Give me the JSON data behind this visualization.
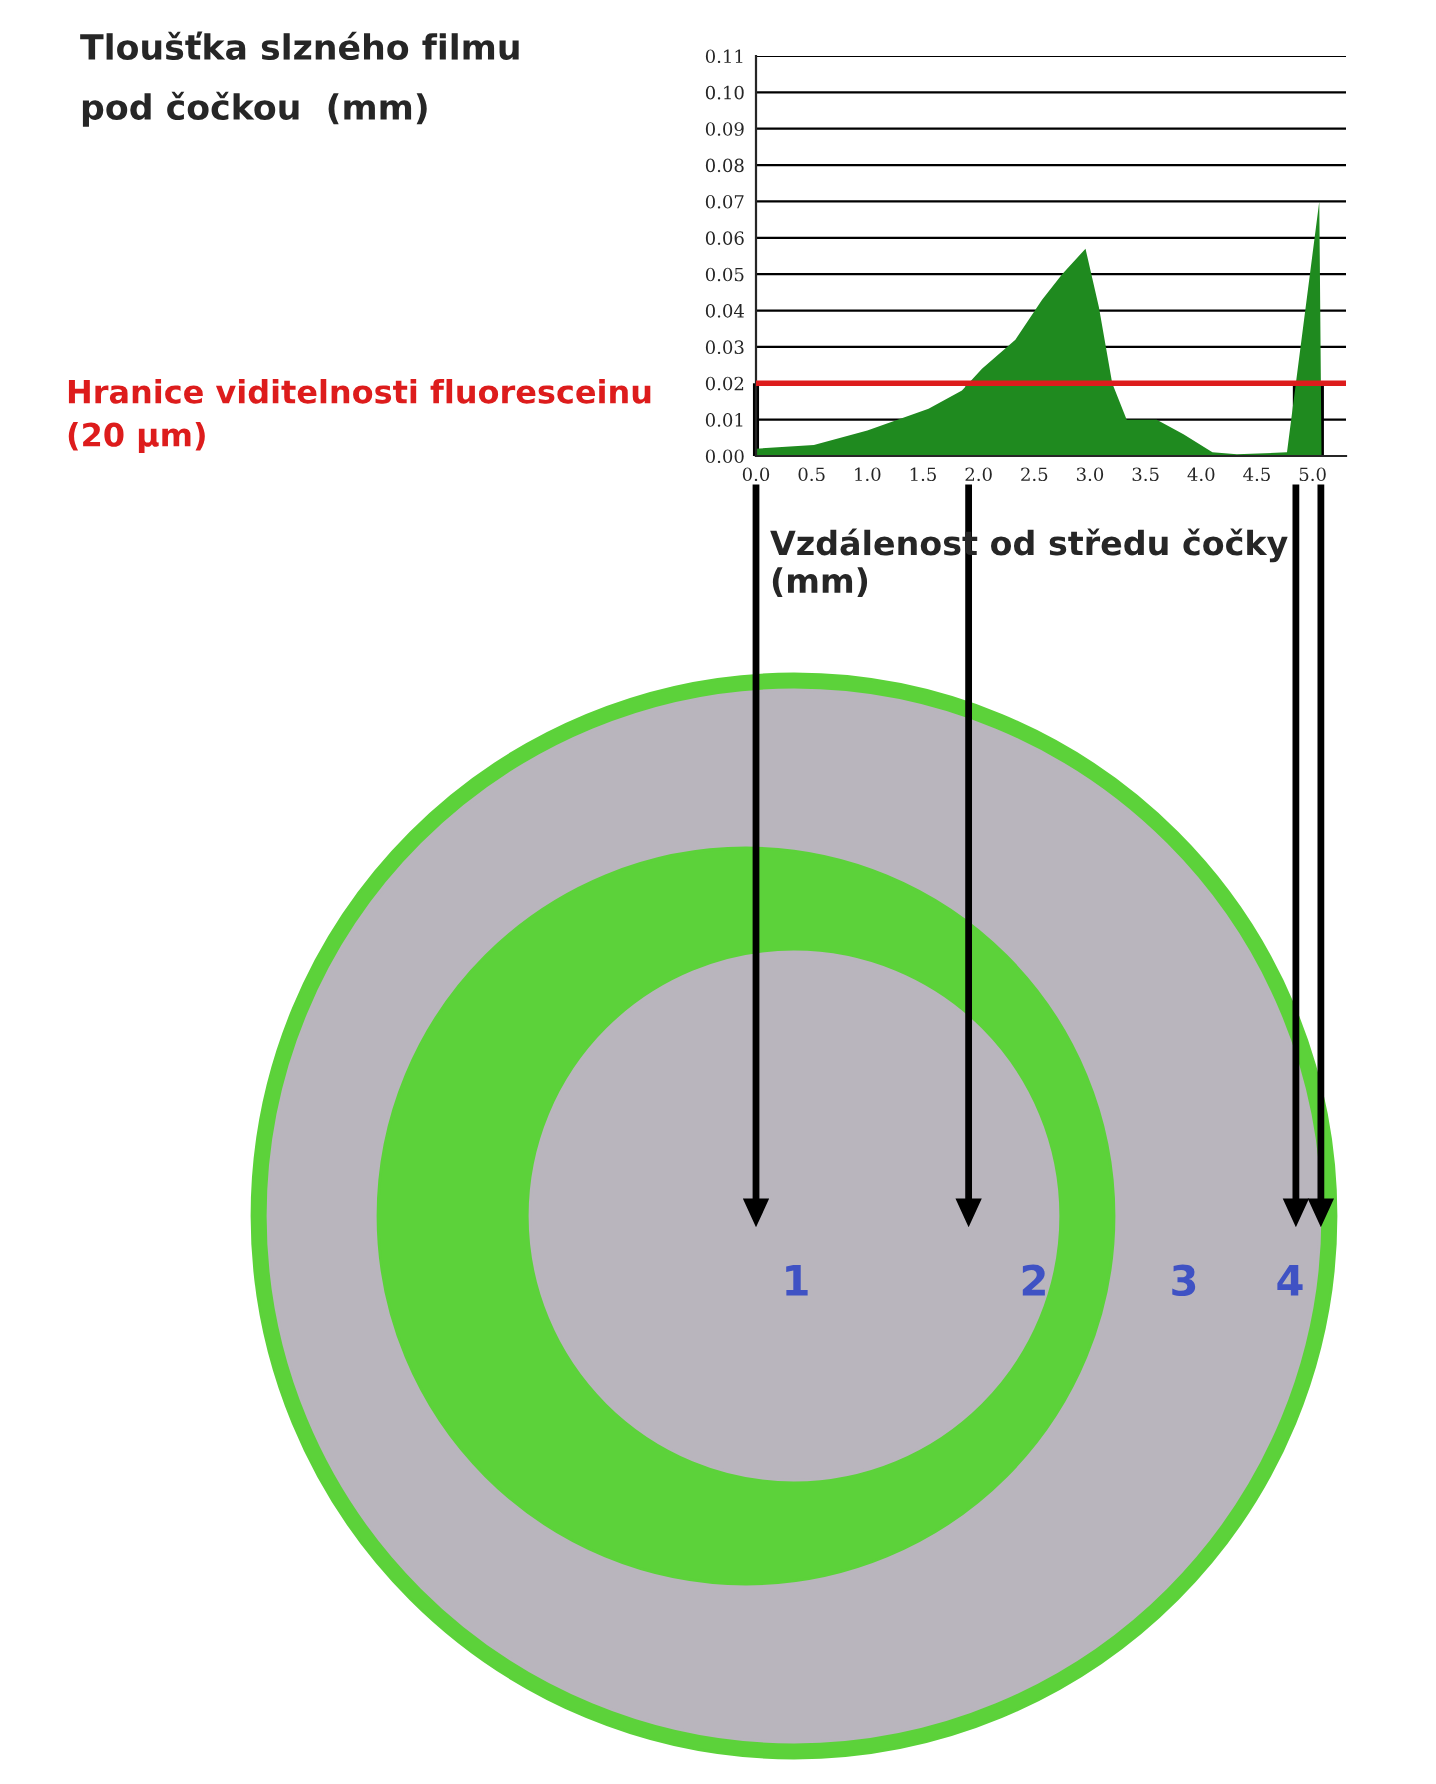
{
  "chart_data": {
    "type": "area",
    "title": "Tloušťka slzného filmu\npod čočkou  (mm)",
    "xlabel": "Vzdálenost od středu čočky\n(mm)",
    "x": [
      0,
      0.52,
      1.0,
      1.55,
      1.85,
      2.03,
      2.33,
      2.57,
      2.75,
      2.96,
      3.08,
      3.2,
      3.33,
      3.6,
      3.84,
      4.1,
      4.32,
      4.77,
      5.06,
      5.08
    ],
    "series": [
      {
        "color": "#1f8a1f",
        "values": [
          0.002,
          0.003,
          0.007,
          0.013,
          0.018,
          0.024,
          0.032,
          0.043,
          0.05,
          0.057,
          0.041,
          0.02,
          0.01,
          0.01,
          0.006,
          0.001,
          0.0005,
          0.001,
          0.07,
          0
        ]
      }
    ],
    "xlim": [
      0,
      5.3
    ],
    "ylim": [
      0,
      0.11
    ],
    "xticks": [
      {
        "value": 0,
        "label": "0.0"
      },
      {
        "value": 0.5,
        "label": "0.5"
      },
      {
        "value": 1,
        "label": "1.0"
      },
      {
        "value": 1.5,
        "label": "1.5"
      },
      {
        "value": 2,
        "label": "2.0"
      },
      {
        "value": 2.5,
        "label": "2.5"
      },
      {
        "value": 3,
        "label": "3.0"
      },
      {
        "value": 3.5,
        "label": "3.5"
      },
      {
        "value": 4,
        "label": "4.0"
      },
      {
        "value": 4.5,
        "label": "4.5"
      },
      {
        "value": 5,
        "label": "5.0"
      }
    ],
    "yticks": [
      {
        "value": 0,
        "label": "0.00"
      },
      {
        "value": 0.01,
        "label": "0.01"
      },
      {
        "value": 0.02,
        "label": "0.02"
      },
      {
        "value": 0.03,
        "label": "0.03"
      },
      {
        "value": 0.04,
        "label": "0.04"
      },
      {
        "value": 0.05,
        "label": "0.05"
      },
      {
        "value": 0.06,
        "label": "0.06"
      },
      {
        "value": 0.07,
        "label": "0.07"
      },
      {
        "value": 0.08,
        "label": "0.08"
      },
      {
        "value": 0.09,
        "label": "0.09"
      },
      {
        "value": 0.1,
        "label": "0.10"
      },
      {
        "value": 0.11,
        "label": "0.11"
      }
    ],
    "grid": "y",
    "ref_lines": [
      {
        "axis": "y",
        "value": 0.02,
        "label": "Hranice viditelnosti fluoresceinu\n(20 µm)",
        "color": "#dd1c1c"
      }
    ],
    "annotations": [
      "1",
      "2",
      "3",
      "4"
    ]
  }
}
